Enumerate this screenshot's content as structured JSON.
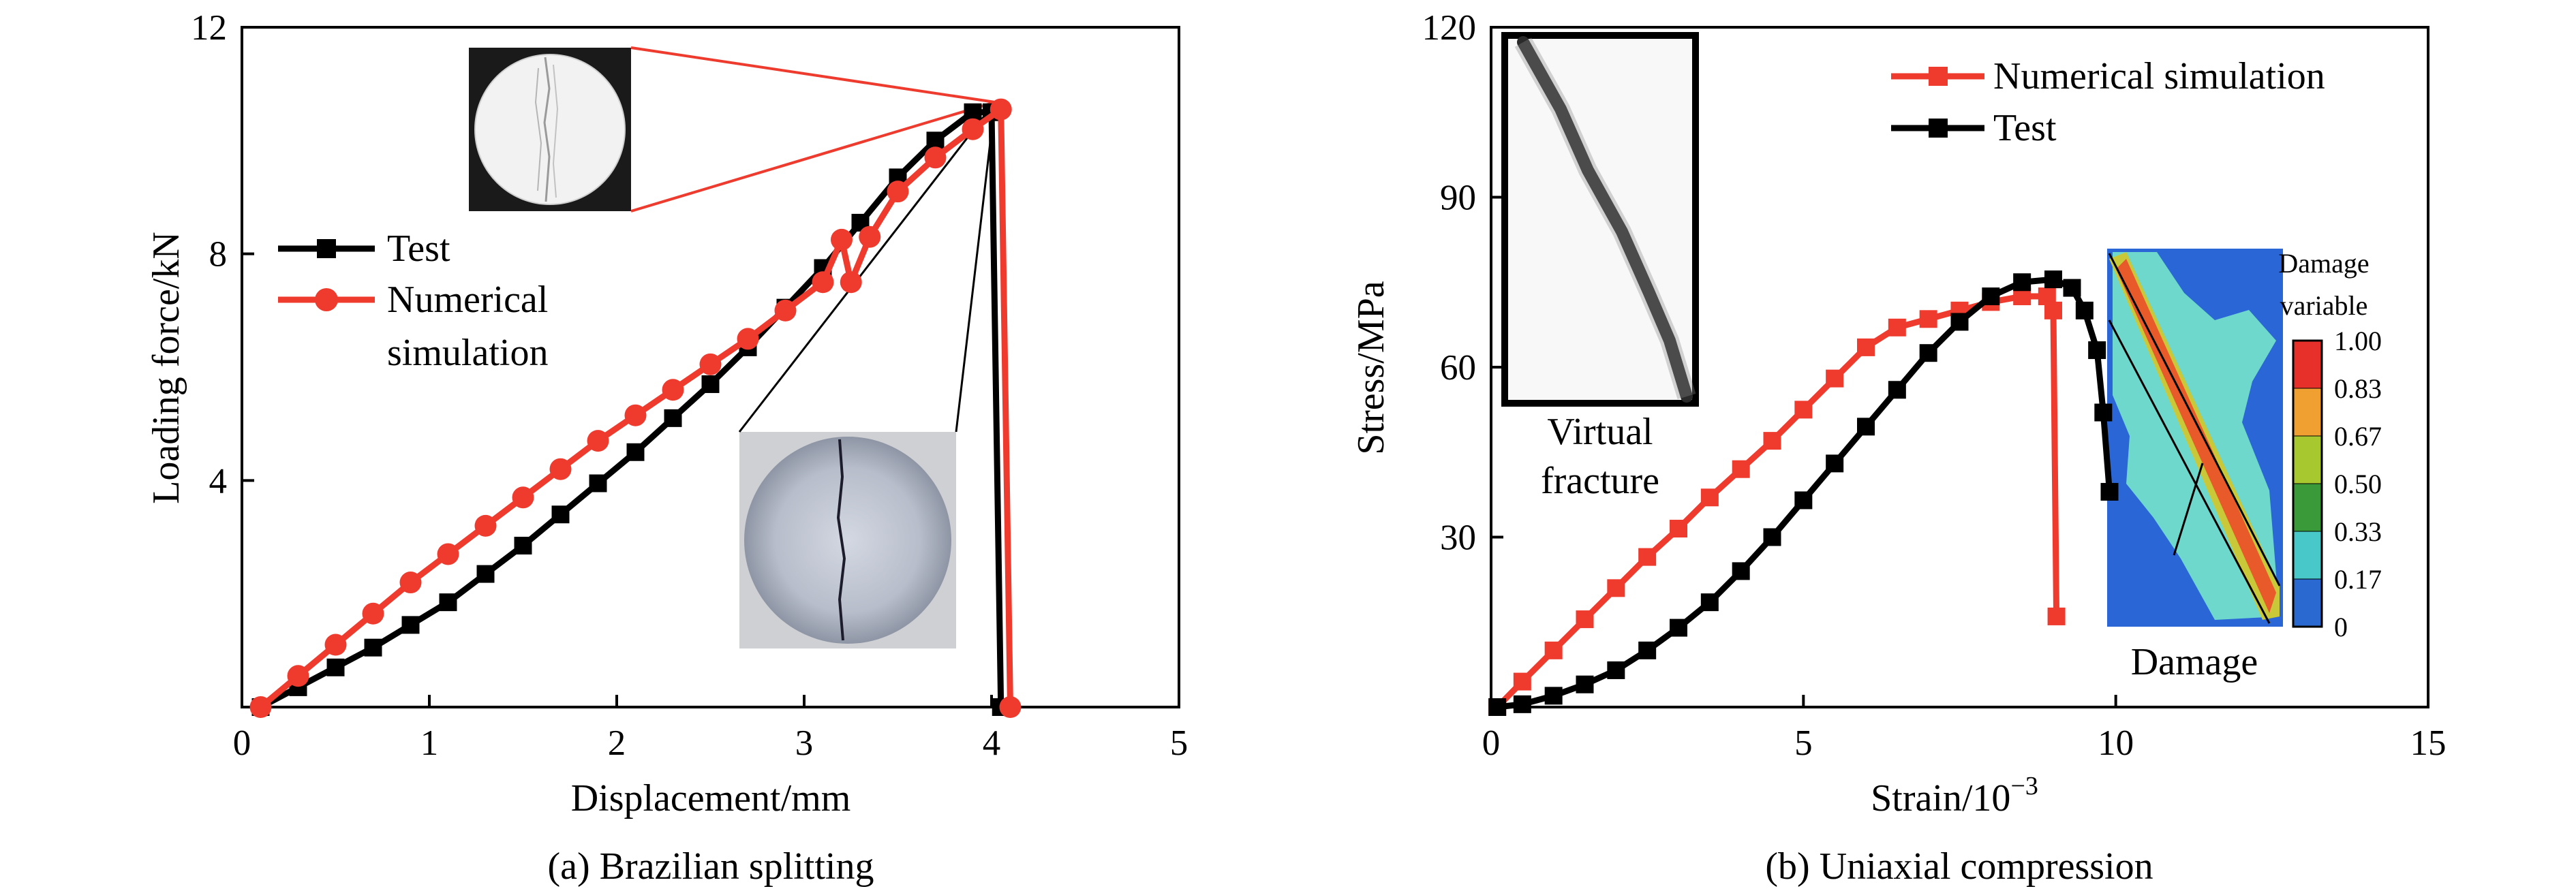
{
  "colors": {
    "test": "#000000",
    "simulation": "#ee3b2e",
    "inset_line_red": "#ee3b2e",
    "inset_line_black": "#000000"
  },
  "chart_data": [
    {
      "type": "line",
      "caption": "(a) Brazilian splitting",
      "xlabel": "Displacement/mm",
      "ylabel": "Loading force/kN",
      "xlim": [
        0,
        5
      ],
      "ylim": [
        0,
        12
      ],
      "xticks": [
        "0",
        "1",
        "2",
        "3",
        "4",
        "5"
      ],
      "yticks": [
        "4",
        "8",
        "12"
      ],
      "legend_position": "center-left",
      "series": [
        {
          "name": "Test",
          "marker": "square",
          "color": "#000000",
          "x": [
            0.1,
            0.3,
            0.5,
            0.7,
            0.9,
            1.1,
            1.3,
            1.5,
            1.7,
            1.9,
            2.1,
            2.3,
            2.5,
            2.7,
            2.9,
            3.1,
            3.3,
            3.5,
            3.7,
            3.9,
            4.0,
            4.05
          ],
          "y": [
            0.0,
            0.35,
            0.7,
            1.05,
            1.45,
            1.85,
            2.35,
            2.85,
            3.4,
            3.95,
            4.5,
            5.1,
            5.7,
            6.35,
            7.05,
            7.75,
            8.55,
            9.35,
            10.0,
            10.5,
            10.5,
            0.0
          ]
        },
        {
          "name": "Numerical simulation",
          "marker": "circle",
          "color": "#ee3b2e",
          "x": [
            0.1,
            0.3,
            0.5,
            0.7,
            0.9,
            1.1,
            1.3,
            1.5,
            1.7,
            1.9,
            2.1,
            2.3,
            2.5,
            2.7,
            2.9,
            3.1,
            3.2,
            3.25,
            3.35,
            3.5,
            3.7,
            3.9,
            4.05,
            4.1
          ],
          "y": [
            0.0,
            0.55,
            1.1,
            1.65,
            2.2,
            2.7,
            3.2,
            3.7,
            4.2,
            4.7,
            5.15,
            5.6,
            6.05,
            6.5,
            7.0,
            7.5,
            8.25,
            7.5,
            8.3,
            9.1,
            9.7,
            10.2,
            10.55,
            0.0
          ]
        }
      ],
      "annotations": []
    },
    {
      "type": "line",
      "caption": "(b) Uniaxial compression",
      "xlabel": "Strain/10",
      "xlabel_superscript": "−3",
      "ylabel": "Stress/MPa",
      "xlim": [
        0,
        15
      ],
      "ylim": [
        0,
        120
      ],
      "xticks": [
        "0",
        "5",
        "10",
        "15"
      ],
      "yticks": [
        "30",
        "60",
        "90",
        "120"
      ],
      "legend_position": "top-right",
      "series": [
        {
          "name": "Numerical simulation",
          "marker": "square",
          "color": "#ee3b2e",
          "x": [
            0.1,
            0.5,
            1.0,
            1.5,
            2.0,
            2.5,
            3.0,
            3.5,
            4.0,
            4.5,
            5.0,
            5.5,
            6.0,
            6.5,
            7.0,
            7.5,
            8.0,
            8.5,
            8.9,
            9.0,
            9.05
          ],
          "y": [
            0.0,
            4.5,
            10.0,
            15.5,
            21.0,
            26.5,
            31.5,
            37.0,
            42.0,
            47.0,
            52.5,
            58.0,
            63.5,
            67.0,
            68.5,
            70.0,
            71.5,
            72.5,
            72.5,
            70.0,
            16.0
          ]
        },
        {
          "name": "Test",
          "marker": "square",
          "color": "#000000",
          "x": [
            0.1,
            0.5,
            1.0,
            1.5,
            2.0,
            2.5,
            3.0,
            3.5,
            4.0,
            4.5,
            5.0,
            5.5,
            6.0,
            6.5,
            7.0,
            7.5,
            8.0,
            8.5,
            9.0,
            9.3,
            9.5,
            9.7,
            9.8,
            9.9
          ],
          "y": [
            0.0,
            0.5,
            2.0,
            4.0,
            6.5,
            10.0,
            14.0,
            18.5,
            24.0,
            30.0,
            36.5,
            43.0,
            49.5,
            56.0,
            62.5,
            68.0,
            72.5,
            75.0,
            75.5,
            74.0,
            70.0,
            63.0,
            52.0,
            38.0
          ]
        }
      ],
      "annotations": [
        {
          "text_1": "Virtual",
          "text_2": "fracture"
        },
        {
          "text": "Damage"
        }
      ],
      "colorbar": {
        "title_1": "Damage",
        "title_2": "variable",
        "ticks": [
          "1.00",
          "0.83",
          "0.67",
          "0.50",
          "0.33",
          "0.17",
          "0"
        ],
        "colors": [
          "#e8302a",
          "#f0a030",
          "#a8c830",
          "#3a9a3a",
          "#48c8c8",
          "#2a6ad0"
        ]
      }
    }
  ]
}
